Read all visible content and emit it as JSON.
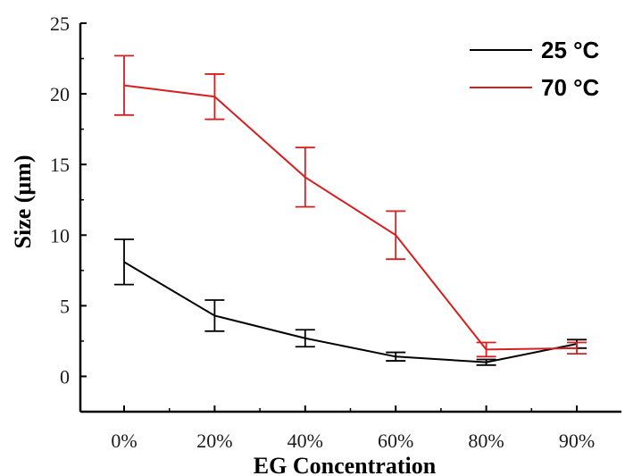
{
  "chart_data": {
    "type": "line",
    "xlabel": "EG Concentration",
    "ylabel": "Size (μm)",
    "categories": [
      "0%",
      "20%",
      "40%",
      "60%",
      "80%",
      "90%"
    ],
    "ylim": [
      -2.5,
      25
    ],
    "yticks": [
      0,
      5,
      10,
      15,
      20,
      25
    ],
    "grid": false,
    "legend_position": "top-right",
    "series": [
      {
        "name": "25 °C",
        "color": "#000000",
        "values": [
          8.1,
          4.3,
          2.7,
          1.4,
          1.0,
          2.3
        ],
        "errors": [
          1.6,
          1.1,
          0.6,
          0.3,
          0.2,
          0.3
        ]
      },
      {
        "name": "70 °C",
        "color": "#d42020",
        "values": [
          20.6,
          19.8,
          14.1,
          10.0,
          1.9,
          2.0
        ],
        "errors": [
          2.1,
          1.6,
          2.1,
          1.7,
          0.5,
          0.4
        ]
      }
    ]
  }
}
